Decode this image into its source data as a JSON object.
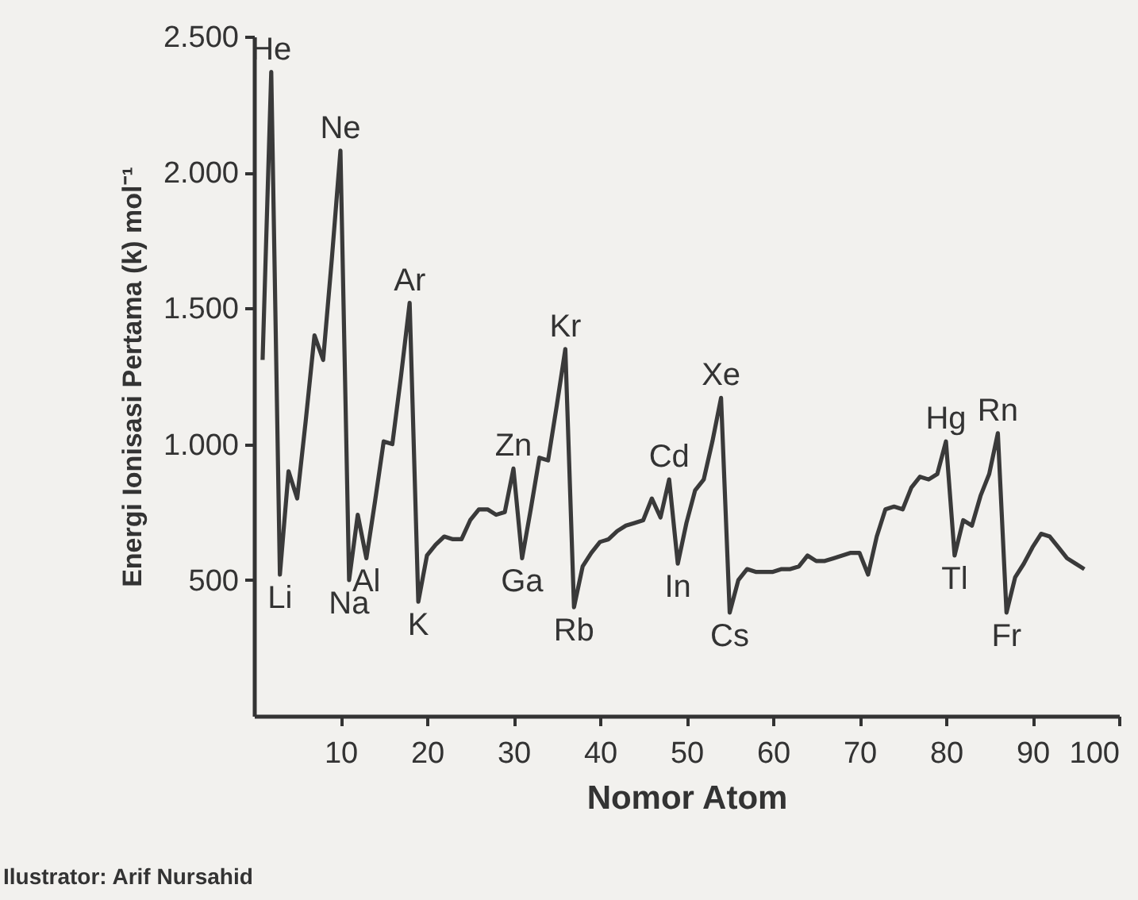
{
  "chart_data": {
    "type": "line",
    "xlabel": "Nomor Atom",
    "ylabel": "Energi Ionisasi Pertama (k) mol⁻¹",
    "x": [
      1,
      2,
      3,
      4,
      5,
      6,
      7,
      8,
      9,
      10,
      11,
      12,
      13,
      14,
      15,
      16,
      17,
      18,
      19,
      20,
      21,
      22,
      23,
      24,
      25,
      26,
      27,
      28,
      29,
      30,
      31,
      32,
      33,
      34,
      35,
      36,
      37,
      38,
      39,
      40,
      41,
      42,
      43,
      44,
      45,
      46,
      47,
      48,
      49,
      50,
      51,
      52,
      53,
      54,
      55,
      56,
      57,
      58,
      59,
      60,
      61,
      62,
      63,
      64,
      65,
      66,
      67,
      68,
      69,
      70,
      71,
      72,
      73,
      74,
      75,
      76,
      77,
      78,
      79,
      80,
      81,
      82,
      83,
      84,
      85,
      86,
      87,
      88,
      89,
      90,
      91,
      92,
      93,
      94,
      95,
      96
    ],
    "series": [
      {
        "color": "#3a3a3a",
        "values": [
          1310,
          2370,
          520,
          900,
          800,
          1090,
          1400,
          1310,
          1680,
          2080,
          500,
          740,
          580,
          790,
          1010,
          1000,
          1250,
          1520,
          420,
          590,
          630,
          660,
          650,
          650,
          720,
          760,
          760,
          740,
          750,
          910,
          580,
          760,
          950,
          940,
          1140,
          1350,
          400,
          550,
          600,
          640,
          650,
          680,
          700,
          710,
          720,
          800,
          730,
          870,
          560,
          710,
          830,
          870,
          1010,
          1170,
          380,
          500,
          540,
          530,
          530,
          530,
          540,
          540,
          550,
          590,
          570,
          570,
          580,
          590,
          600,
          600,
          520,
          660,
          760,
          770,
          760,
          840,
          880,
          870,
          890,
          1010,
          590,
          720,
          700,
          810,
          890,
          1040,
          380,
          510,
          560,
          620,
          670,
          660,
          620,
          580,
          560,
          540
        ]
      }
    ],
    "xlim": [
      0,
      100
    ],
    "xticks": [
      10,
      20,
      30,
      40,
      50,
      60,
      70,
      80,
      90,
      100
    ],
    "ylim": [
      0,
      2500
    ],
    "yticks": [
      {
        "value": 500,
        "label": "500"
      },
      {
        "value": 1000,
        "label": "1.000"
      },
      {
        "value": 1500,
        "label": "1.500"
      },
      {
        "value": 2000,
        "label": "2.000"
      },
      {
        "value": 2500,
        "label": "2.500"
      }
    ],
    "grid": false,
    "legend": false,
    "marker": "none",
    "line_style": "solid",
    "annotations": [
      {
        "text": "He",
        "x": 2,
        "y": 2370
      },
      {
        "text": "Li",
        "x": 3,
        "y": 520
      },
      {
        "text": "Ne",
        "x": 10,
        "y": 2080
      },
      {
        "text": "Na",
        "x": 11,
        "y": 500
      },
      {
        "text": "Al",
        "x": 13,
        "y": 580
      },
      {
        "text": "Ar",
        "x": 18,
        "y": 1520
      },
      {
        "text": "K",
        "x": 19,
        "y": 420
      },
      {
        "text": "Zn",
        "x": 30,
        "y": 910
      },
      {
        "text": "Ga",
        "x": 31,
        "y": 580
      },
      {
        "text": "Kr",
        "x": 36,
        "y": 1350
      },
      {
        "text": "Rb",
        "x": 37,
        "y": 400
      },
      {
        "text": "Cd",
        "x": 48,
        "y": 870
      },
      {
        "text": "In",
        "x": 49,
        "y": 560
      },
      {
        "text": "Xe",
        "x": 54,
        "y": 1170
      },
      {
        "text": "Cs",
        "x": 55,
        "y": 380
      },
      {
        "text": "Hg",
        "x": 80,
        "y": 1010
      },
      {
        "text": "Tl",
        "x": 81,
        "y": 590
      },
      {
        "text": "Rn",
        "x": 86,
        "y": 1040
      },
      {
        "text": "Fr",
        "x": 87,
        "y": 380
      },
      "Ilustrator: Arif Nursahid"
    ]
  }
}
